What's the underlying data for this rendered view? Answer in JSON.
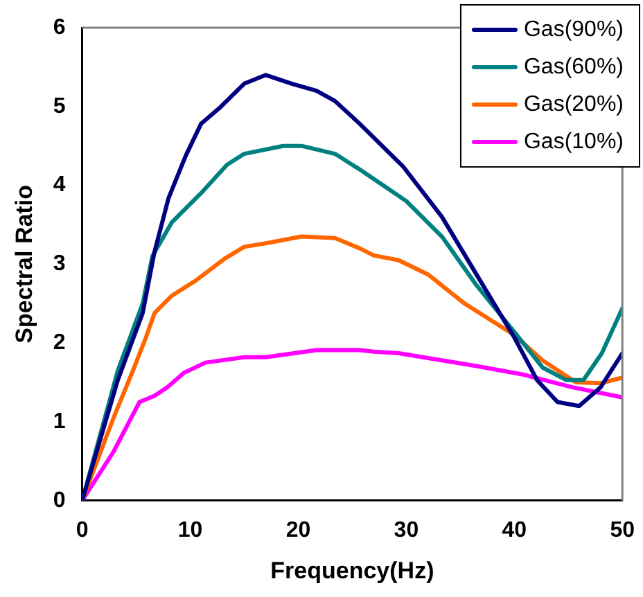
{
  "chart_data": {
    "type": "line",
    "xlabel": "Frequency(Hz)",
    "ylabel": "Spectral Ratio",
    "xlim": [
      0,
      50
    ],
    "xticks": [
      0,
      10,
      20,
      30,
      40,
      50
    ],
    "ylim": [
      0,
      6
    ],
    "yticks": [
      0,
      1,
      2,
      3,
      4,
      5,
      6
    ],
    "grid": false,
    "legend": "top right",
    "marker": "none",
    "line_style": "solid",
    "series": [
      {
        "name": "Gas(90%)",
        "color": "#000080",
        "x": [
          0,
          3.3,
          5.6,
          6.7,
          8,
          9.6,
          11,
          12.7,
          15,
          17,
          19.4,
          21.7,
          23.4,
          25.7,
          29.7,
          33.3,
          36.8,
          40,
          42.1,
          44,
          46,
          48,
          50
        ],
        "values": [
          0,
          1.53,
          2.38,
          3.16,
          3.84,
          4.38,
          4.78,
          4.98,
          5.29,
          5.4,
          5.29,
          5.2,
          5.07,
          4.78,
          4.24,
          3.6,
          2.8,
          2.07,
          1.53,
          1.25,
          1.2,
          1.44,
          1.87
        ]
      },
      {
        "name": "Gas(60%)",
        "color": "#008080",
        "x": [
          0,
          3.3,
          5.6,
          6.5,
          8.3,
          11,
          13.4,
          15,
          18.6,
          20.3,
          23.4,
          25.7,
          28.3,
          30,
          33.3,
          36.4,
          40,
          42.6,
          44.8,
          46.4,
          48.1,
          50
        ],
        "values": [
          0,
          1.65,
          2.5,
          3.1,
          3.53,
          3.9,
          4.26,
          4.4,
          4.5,
          4.5,
          4.4,
          4.2,
          3.96,
          3.8,
          3.35,
          2.75,
          2.14,
          1.69,
          1.53,
          1.53,
          1.87,
          2.44
        ]
      },
      {
        "name": "Gas(20%)",
        "color": "#ff6600",
        "x": [
          0,
          2.9,
          4.7,
          5.9,
          6.7,
          8.3,
          10.6,
          13.2,
          15,
          17.2,
          20.3,
          23.4,
          25.7,
          27,
          29.3,
          32,
          35.4,
          40,
          42.6,
          45.7,
          48,
          50
        ],
        "values": [
          0,
          1.05,
          1.65,
          2.07,
          2.38,
          2.6,
          2.8,
          3.07,
          3.22,
          3.27,
          3.35,
          3.33,
          3.2,
          3.11,
          3.05,
          2.87,
          2.5,
          2.1,
          1.78,
          1.5,
          1.49,
          1.56
        ]
      },
      {
        "name": "Gas(10%)",
        "color": "#ff00ff",
        "x": [
          0,
          2.9,
          5.3,
          6.7,
          7.9,
          9.4,
          11.4,
          15,
          17,
          21.7,
          25.7,
          27,
          29.3,
          36.4,
          40.8,
          45.3,
          50
        ],
        "values": [
          0,
          0.62,
          1.25,
          1.33,
          1.44,
          1.62,
          1.75,
          1.82,
          1.82,
          1.91,
          1.91,
          1.89,
          1.87,
          1.71,
          1.6,
          1.44,
          1.31
        ]
      }
    ]
  }
}
